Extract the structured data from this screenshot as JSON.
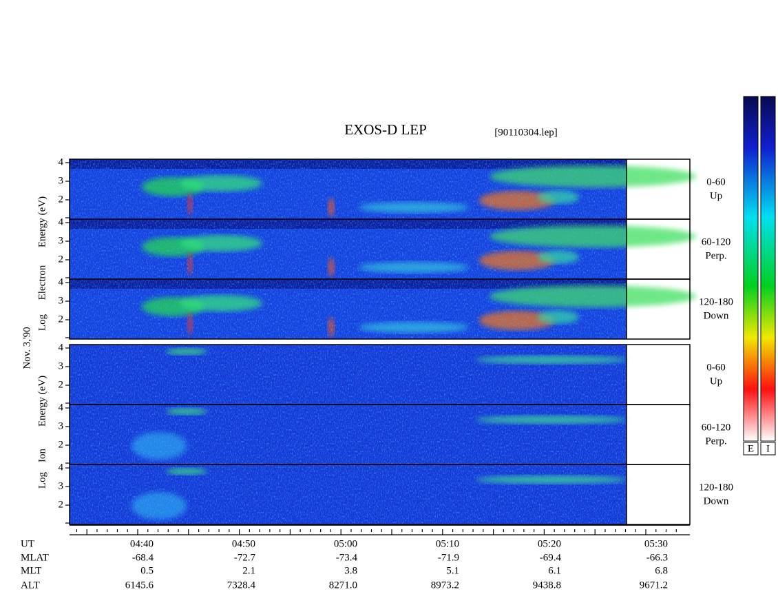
{
  "title": "EXOS-D LEP",
  "file": "[90110304.lep]",
  "date": "Nov. 3,'90",
  "groups": [
    {
      "axis_label": [
        "Log",
        "Electron",
        "Energy (eV)"
      ],
      "panels": [
        {
          "angle": "0-60",
          "direction": "Up"
        },
        {
          "angle": "60-120",
          "direction": "Perp."
        },
        {
          "angle": "120-180",
          "direction": "Down"
        }
      ]
    },
    {
      "axis_label": [
        "Log",
        "Ion",
        "Energy (eV)"
      ],
      "panels": [
        {
          "angle": "0-60",
          "direction": "Up"
        },
        {
          "angle": "60-120",
          "direction": "Perp."
        },
        {
          "angle": "120-180",
          "direction": "Down"
        }
      ]
    }
  ],
  "yticks": [
    2,
    3,
    4
  ],
  "time_rows": [
    {
      "name": "UT",
      "values": [
        "04:40",
        "04:50",
        "05:00",
        "05:10",
        "05:20",
        "05:30"
      ]
    },
    {
      "name": "MLAT",
      "values": [
        "-68.4",
        "-72.7",
        "-73.4",
        "-71.9",
        "-69.4",
        "-66.3"
      ]
    },
    {
      "name": "MLT",
      "values": [
        "0.5",
        "2.1",
        "3.8",
        "5.1",
        "6.1",
        "6.8"
      ]
    },
    {
      "name": "ALT",
      "values": [
        "6145.6",
        "7328.4",
        "8271.0",
        "8973.2",
        "9438.8",
        "9671.2"
      ]
    }
  ],
  "colorbar_labels": [
    "E",
    "I"
  ]
}
